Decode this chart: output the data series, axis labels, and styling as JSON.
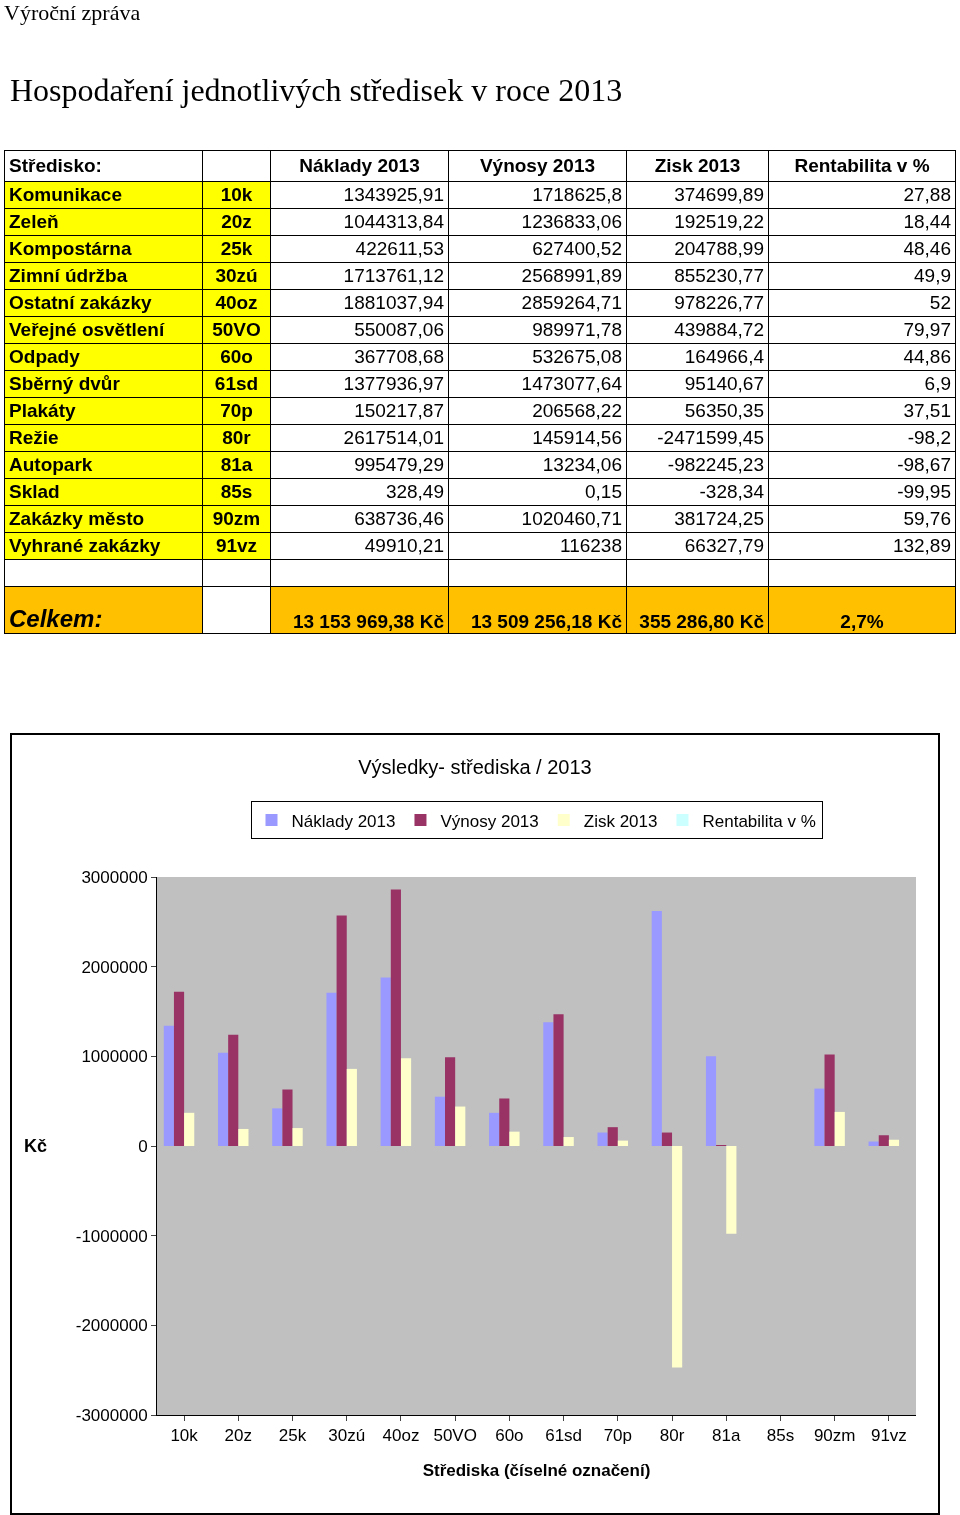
{
  "chart_data": [
    {
      "type": "other",
      "title": "Hospodaření jednotlivých středisek v roce 2013",
      "annotations": [
        "Výroční zpráva",
        "Středisko:",
        "Náklady 2013",
        "Výnosy 2013",
        "Zisk 2013",
        "Rentabilita v %",
        "Komunikace",
        "10k",
        "1343925,91",
        "1718625,8",
        "374699,89",
        "27,88",
        "Zeleň",
        "20z",
        "1044313,84",
        "1236833,06",
        "192519,22",
        "18,44",
        "Kompostárna",
        "25k",
        "422611,53",
        "627400,52",
        "204788,99",
        "48,46",
        "Zimní údržba",
        "30zú",
        "1713761,12",
        "2568991,89",
        "855230,77",
        "49,9",
        "Ostatní zakázky",
        "40oz",
        "1881037,94",
        "2859264,71",
        "978226,77",
        "52",
        "Veřejné osvětlení",
        "50VO",
        "550087,06",
        "989971,78",
        "439884,72",
        "79,97",
        "Odpady",
        "60o",
        "367708,68",
        "532675,08",
        "164966,4",
        "44,86",
        "Sběrný dvůr",
        "61sd",
        "1377936,97",
        "1473077,64",
        "95140,67",
        "6,9",
        "Plakáty",
        "70p",
        "150217,87",
        "206568,22",
        "56350,35",
        "37,51",
        "Režie",
        "80r",
        "2617514,01",
        "145914,56",
        "-2471599,45",
        "-98,2",
        "Autopark",
        "81a",
        "995479,29",
        "13234,06",
        "-982245,23",
        "-98,67",
        "Sklad",
        "85s",
        "328,49",
        "0,15",
        "-328,34",
        "-99,95",
        "Zakázky město",
        "90zm",
        "638736,46",
        "1020460,71",
        "381724,25",
        "59,76",
        "Vyhrané zakázky",
        "91vz",
        "49910,21",
        "116238",
        "66327,79",
        "132,89",
        "Celkem:",
        "13 153 969,38 Kč",
        "13 509 256,18 Kč",
        "355 286,80 Kč",
        "2,7%"
      ]
    },
    {
      "type": "bar",
      "title": "Výsledky- střediska / 2013",
      "xlabel": "Střediska (číselné označení)",
      "ylabel": "Kč",
      "categories": [
        "10k",
        "20z",
        "25k",
        "30zú",
        "40oz",
        "50VO",
        "60o",
        "61sd",
        "70p",
        "80r",
        "81a",
        "85s",
        "90zm",
        "91vz"
      ],
      "series": [
        {
          "name": "Náklady 2013",
          "color": "#9999ff",
          "values": [
            1340000,
            1040000,
            420000,
            1710000,
            1880000,
            550000,
            370000,
            1380000,
            150000,
            2620000,
            1000000,
            0,
            640000,
            50000
          ]
        },
        {
          "name": "Výnosy 2013",
          "color": "#993366",
          "values": [
            1720000,
            1240000,
            630000,
            2570000,
            2860000,
            990000,
            530000,
            1470000,
            210000,
            150000,
            10000,
            0,
            1020000,
            120000
          ]
        },
        {
          "name": "Zisk 2013",
          "color": "#ffffcc",
          "values": [
            370000,
            190000,
            200000,
            860000,
            980000,
            440000,
            160000,
            100000,
            60000,
            -2470000,
            -980000,
            0,
            380000,
            70000
          ]
        },
        {
          "name": "Rentabilita v %",
          "color": "#ccffff",
          "values": [
            0,
            0,
            0,
            0,
            0,
            0,
            0,
            0,
            0,
            0,
            0,
            0,
            0,
            0
          ]
        }
      ],
      "ylim": [
        -3000000,
        3000000
      ],
      "yticks": [
        -3000000,
        -2000000,
        -1000000,
        0,
        1000000,
        2000000,
        3000000
      ],
      "legend": "top"
    }
  ]
}
